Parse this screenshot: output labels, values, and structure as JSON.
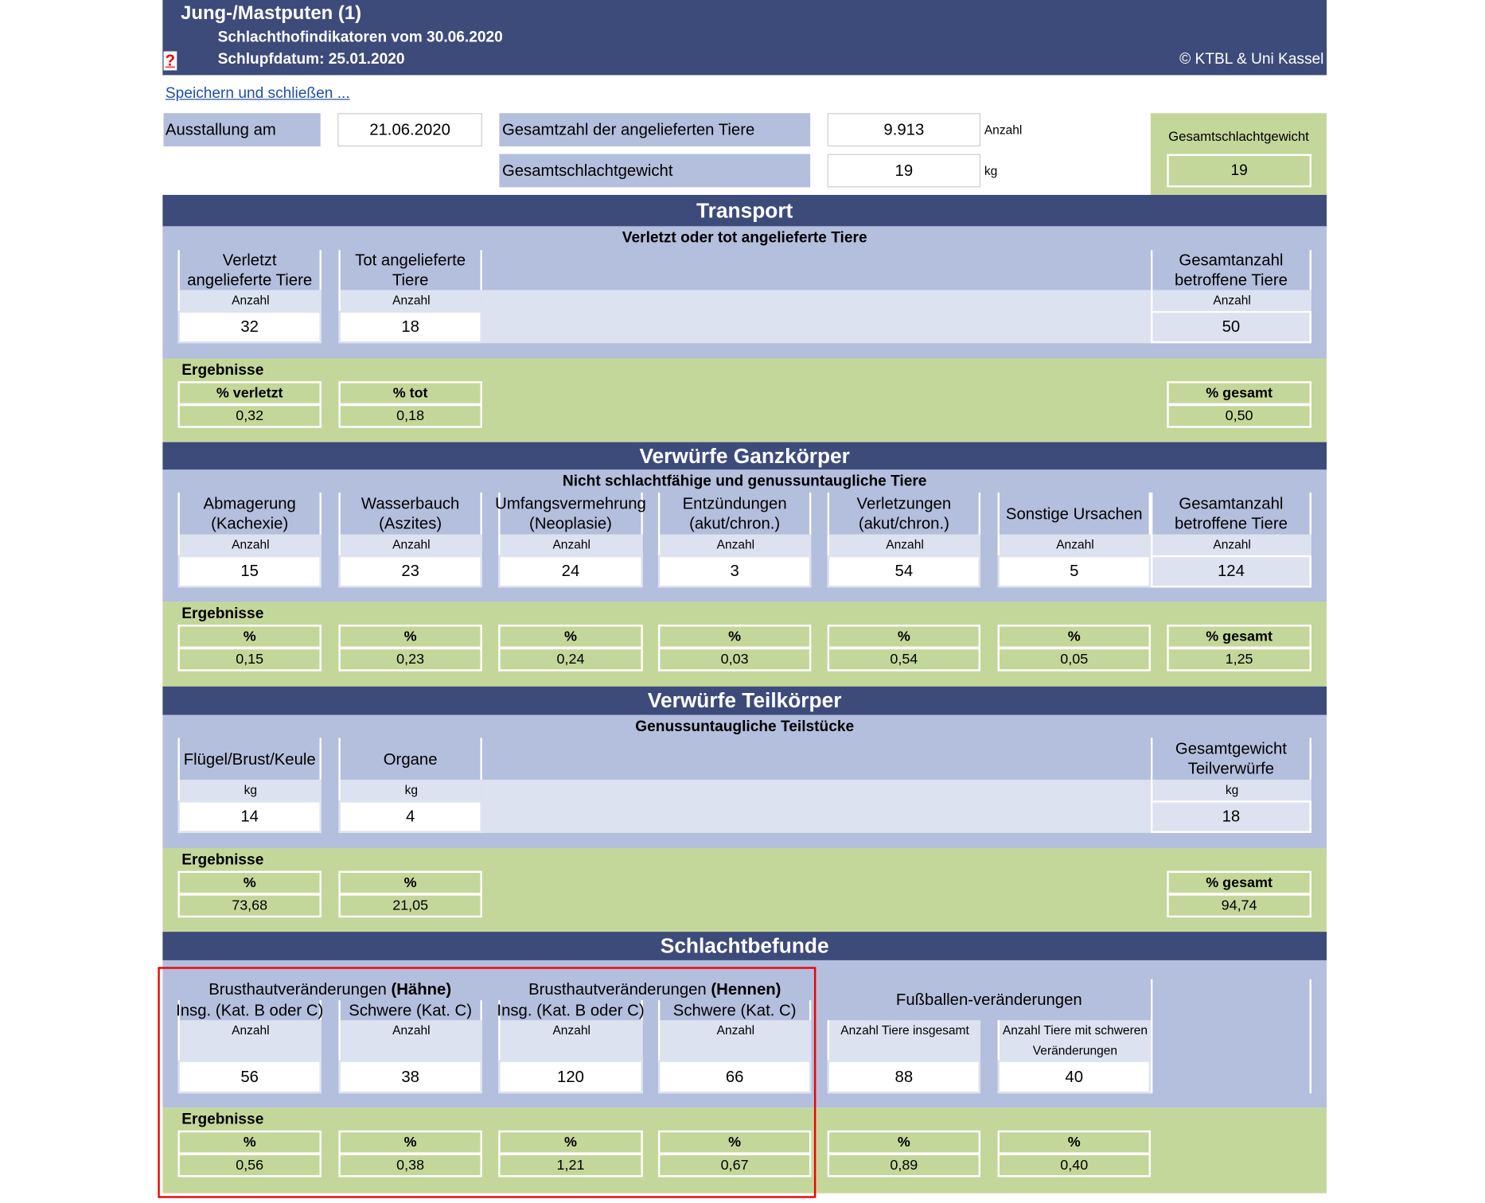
{
  "header": {
    "title": "Jung-/Mastputen (1)",
    "subtitle": "Schlachthofindikatoren vom 30.06.2020",
    "hatch_date": "Schlupfdatum: 25.01.2020",
    "copyright": "© KTBL & Uni Kassel",
    "help": "?"
  },
  "link": "Speichern und schließen ...",
  "info": {
    "ausstallung_label": "Ausstallung am",
    "ausstallung_value": "21.06.2020",
    "total_label": "Gesamtzahl der angelieferten Tiere",
    "total_value": "9.913",
    "total_unit": "Anzahl",
    "weight_label": "Gesamtschlachtgewicht",
    "weight_value": "19",
    "weight_unit": "kg",
    "box_label": "Gesamtschlachtgewicht",
    "box_value": "19"
  },
  "sections": [
    {
      "title": "Transport",
      "subtitle": "Verletzt oder tot angelieferte Tiere",
      "results_label": "Ergebnisse",
      "columns": [
        {
          "label": "Verletzt angelieferte Tiere",
          "unit": "Anzahl",
          "value": "32",
          "result_label": "% verletzt",
          "result_value": "0,32"
        },
        {
          "label": "Tot angelieferte Tiere",
          "unit": "Anzahl",
          "value": "18",
          "result_label": "% tot",
          "result_value": "0,18"
        },
        {
          "label": "Gesamtanzahl betroffene Tiere",
          "unit": "Anzahl",
          "value": "50",
          "result_label": "% gesamt",
          "result_value": "0,50"
        }
      ]
    },
    {
      "title": "Verwürfe Ganzkörper",
      "subtitle": "Nicht schlachtfähige und genussuntaugliche Tiere",
      "results_label": "Ergebnisse",
      "columns": [
        {
          "label": "Abmagerung (Kachexie)",
          "unit": "Anzahl",
          "value": "15",
          "result_label": "%",
          "result_value": "0,15"
        },
        {
          "label": "Wasserbauch (Aszites)",
          "unit": "Anzahl",
          "value": "23",
          "result_label": "%",
          "result_value": "0,23"
        },
        {
          "label": "Umfangsvermehrung (Neoplasie)",
          "unit": "Anzahl",
          "value": "24",
          "result_label": "%",
          "result_value": "0,24"
        },
        {
          "label": "Entzündungen (akut/chron.)",
          "unit": "Anzahl",
          "value": "3",
          "result_label": "%",
          "result_value": "0,03"
        },
        {
          "label": "Verletzungen (akut/chron.)",
          "unit": "Anzahl",
          "value": "54",
          "result_label": "%",
          "result_value": "0,54"
        },
        {
          "label": "Sonstige Ursachen",
          "unit": "Anzahl",
          "value": "5",
          "result_label": "%",
          "result_value": "0,05"
        },
        {
          "label": "Gesamtanzahl betroffene Tiere",
          "unit": "Anzahl",
          "value": "124",
          "result_label": "% gesamt",
          "result_value": "1,25"
        }
      ]
    },
    {
      "title": "Verwürfe Teilkörper",
      "subtitle": "Genussuntaugliche Teilstücke",
      "results_label": "Ergebnisse",
      "columns": [
        {
          "label": "Flügel/Brust/Keule",
          "unit": "kg",
          "value": "14",
          "result_label": "%",
          "result_value": "73,68"
        },
        {
          "label": "Organe",
          "unit": "kg",
          "value": "4",
          "result_label": "%",
          "result_value": "21,05"
        },
        {
          "label": "Gesamtgewicht Teilverwürfe",
          "unit": "kg",
          "value": "18",
          "result_label": "% gesamt",
          "result_value": "94,74"
        }
      ]
    },
    {
      "title": "Schlachtbefunde",
      "results_label": "Ergebnisse",
      "groups": [
        {
          "label": "Brusthautveränderungen",
          "bold": "(Hähne)"
        },
        {
          "label": "Brusthautveränderungen",
          "bold": "(Hennen)"
        },
        {
          "label": "Fußballen-veränderungen"
        }
      ],
      "columns": [
        {
          "label": "Insg. (Kat. B oder C)",
          "unit": "Anzahl",
          "value": "56",
          "result_label": "%",
          "result_value": "0,56"
        },
        {
          "label": "Schwere (Kat. C)",
          "unit": "Anzahl",
          "value": "38",
          "result_label": "%",
          "result_value": "0,38"
        },
        {
          "label": "Insg. (Kat. B oder C)",
          "unit": "Anzahl",
          "value": "120",
          "result_label": "%",
          "result_value": "1,21"
        },
        {
          "label": "Schwere (Kat. C)",
          "unit": "Anzahl",
          "value": "66",
          "result_label": "%",
          "result_value": "0,67"
        },
        {
          "unit": "Anzahl Tiere insgesamt",
          "value": "88",
          "result_label": "%",
          "result_value": "0,89"
        },
        {
          "unit": "Anzahl Tiere mit schweren Veränderungen",
          "value": "40",
          "result_label": "%",
          "result_value": "0,40"
        }
      ]
    }
  ]
}
